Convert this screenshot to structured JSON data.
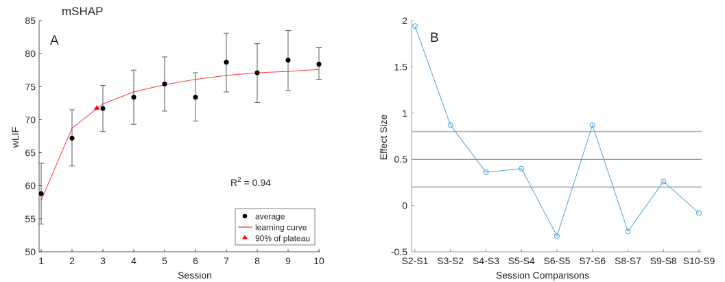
{
  "chart_data": [
    {
      "type": "scatter",
      "title": "mSHAP",
      "panel_label": "A",
      "xlabel": "Session",
      "ylabel": "wLIF",
      "xlim": [
        1,
        10
      ],
      "ylim": [
        50,
        85
      ],
      "xticks": [
        1,
        2,
        3,
        4,
        5,
        6,
        7,
        8,
        9,
        10
      ],
      "yticks": [
        50,
        55,
        60,
        65,
        70,
        75,
        80,
        85
      ],
      "grid": false,
      "legend_position": "bottom-right",
      "annotation": {
        "prefix": "R",
        "superscript": "2",
        "suffix": " = 0.94"
      },
      "series": [
        {
          "name": "average",
          "marker": "filled-circle",
          "color": "#000000",
          "x": [
            1,
            2,
            3,
            4,
            5,
            6,
            7,
            8,
            9,
            10
          ],
          "y": [
            58.8,
            67.2,
            71.7,
            73.4,
            75.4,
            73.4,
            78.7,
            77.1,
            79.0,
            78.4
          ],
          "error_lower": [
            54.2,
            63.0,
            68.2,
            69.3,
            71.3,
            69.8,
            74.2,
            72.6,
            74.4,
            76.1
          ],
          "error_upper": [
            63.4,
            71.5,
            75.2,
            77.5,
            79.5,
            77.1,
            83.1,
            81.5,
            83.5,
            80.9
          ]
        },
        {
          "name": "learning curve",
          "style": "line",
          "color": "#ff0000",
          "x": [
            1,
            2,
            3,
            4,
            5,
            6,
            7,
            8,
            9,
            10
          ],
          "y": [
            57.8,
            68.7,
            72.4,
            74.2,
            75.3,
            76.1,
            76.7,
            77.1,
            77.3,
            77.6
          ]
        },
        {
          "name": "90% of plateau",
          "marker": "filled-triangle",
          "color": "#ff0000",
          "x": [
            2.8
          ],
          "y": [
            71.8
          ]
        }
      ]
    },
    {
      "type": "line",
      "panel_label": "B",
      "xlabel": "Session Comparisons",
      "ylabel": "Effect Size",
      "categories": [
        "S2-S1",
        "S3-S2",
        "S4-S3",
        "S5-S4",
        "S6-S5",
        "S7-S6",
        "S8-S7",
        "S9-S8",
        "S10-S9"
      ],
      "ylim": [
        -0.5,
        2
      ],
      "yticks": [
        -0.5,
        0,
        0.5,
        1,
        1.5,
        2
      ],
      "ytick_labels": [
        "-0.5",
        "0",
        "0.5",
        "1",
        "1.5",
        "2"
      ],
      "grid": false,
      "reference_lines": [
        0.2,
        0.5,
        0.8
      ],
      "series": [
        {
          "name": "effect size",
          "marker": "open-circle",
          "color": "#4fa3d8",
          "values": [
            1.94,
            0.87,
            0.36,
            0.4,
            -0.33,
            0.87,
            -0.28,
            0.26,
            -0.08
          ]
        }
      ]
    }
  ]
}
